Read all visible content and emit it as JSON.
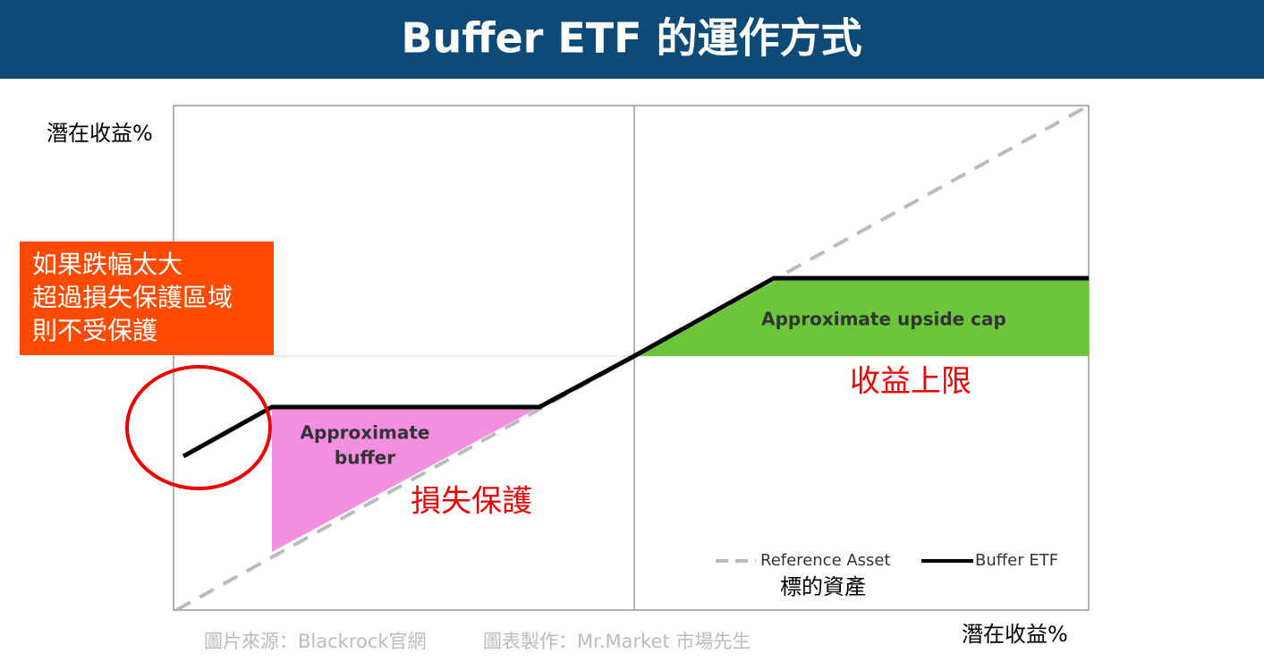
{
  "header": {
    "title": "Buffer ETF 的運作方式"
  },
  "axes": {
    "y_label": "潛在收益%",
    "x_label": "潛在收益%"
  },
  "warning_box": {
    "lines": [
      "如果跌幅太大",
      "超過損失保護區域",
      "則不受保護"
    ]
  },
  "regions": {
    "buffer": {
      "lines": [
        "Approximate",
        "buffer"
      ],
      "note": "損失保護"
    },
    "cap": {
      "label": "Approximate upside cap",
      "note": "收益上限"
    }
  },
  "legend": {
    "reference": "Reference Asset",
    "buffer_etf": "Buffer ETF",
    "reference_note": "標的資產"
  },
  "footer": {
    "source": "圖片來源：Blackrock官網",
    "credit": "圖表製作：Mr.Market 市場先生"
  }
}
